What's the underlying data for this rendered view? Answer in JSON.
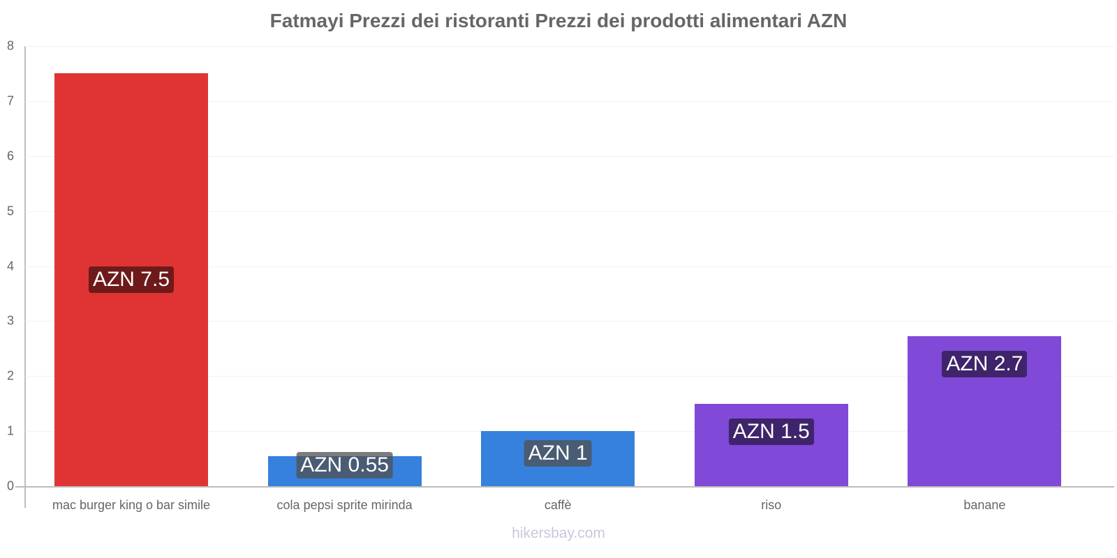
{
  "chart_data": {
    "type": "bar",
    "title": "Fatmayi Prezzi dei ristoranti Prezzi dei prodotti alimentari AZN",
    "xlabel": "",
    "ylabel": "",
    "ylim": [
      0,
      8
    ],
    "yticks": [
      "0",
      "1",
      "2",
      "3",
      "4",
      "5",
      "6",
      "7",
      "8"
    ],
    "grid": true,
    "categories": [
      "mac burger king o bar simile",
      "cola pepsi sprite mirinda",
      "caffè",
      "riso",
      "banane"
    ],
    "values": [
      7.5,
      0.55,
      1,
      1.5,
      2.73
    ],
    "data_labels": [
      "AZN 7.5",
      "AZN 0.55",
      "AZN 1",
      "AZN 1.5",
      "AZN 2.7"
    ],
    "colors": [
      "#e03434",
      "#3581dd",
      "#3581dd",
      "#8049d8",
      "#8049d8"
    ],
    "label_colors": [
      "#6e1a1a",
      "rgba(80,80,80,0.75)",
      "rgba(80,80,80,0.75)",
      "#3f246b",
      "#3f246b"
    ]
  },
  "watermark": "hikersbay.com"
}
